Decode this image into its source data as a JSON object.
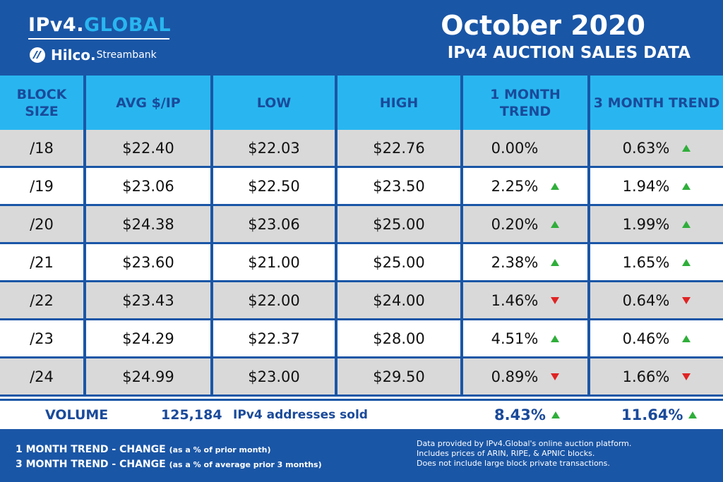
{
  "header": {
    "brand_main": "IPv4.",
    "brand_accent": "GLOBAL",
    "sub_brand_bold": "Hilco.",
    "sub_brand_rest": "Streambank",
    "title_main": "October 2020",
    "title_sub": "IPv4 AUCTION SALES DATA"
  },
  "columns": [
    "BLOCK SIZE",
    "AVG $/IP",
    "LOW",
    "HIGH",
    "1 MONTH TREND",
    "3 MONTH TREND"
  ],
  "rows": [
    {
      "block": "/18",
      "avg": "$22.40",
      "low": "$22.03",
      "high": "$22.76",
      "t1": "0.00%",
      "t1_dir": "none",
      "t3": "0.63%",
      "t3_dir": "up"
    },
    {
      "block": "/19",
      "avg": "$23.06",
      "low": "$22.50",
      "high": "$23.50",
      "t1": "2.25%",
      "t1_dir": "up",
      "t3": "1.94%",
      "t3_dir": "up"
    },
    {
      "block": "/20",
      "avg": "$24.38",
      "low": "$23.06",
      "high": "$25.00",
      "t1": "0.20%",
      "t1_dir": "up",
      "t3": "1.99%",
      "t3_dir": "up"
    },
    {
      "block": "/21",
      "avg": "$23.60",
      "low": "$21.00",
      "high": "$25.00",
      "t1": "2.38%",
      "t1_dir": "up",
      "t3": "1.65%",
      "t3_dir": "up"
    },
    {
      "block": "/22",
      "avg": "$23.43",
      "low": "$22.00",
      "high": "$24.00",
      "t1": "1.46%",
      "t1_dir": "down",
      "t3": "0.64%",
      "t3_dir": "down"
    },
    {
      "block": "/23",
      "avg": "$24.29",
      "low": "$22.37",
      "high": "$28.00",
      "t1": "4.51%",
      "t1_dir": "up",
      "t3": "0.46%",
      "t3_dir": "up"
    },
    {
      "block": "/24",
      "avg": "$24.99",
      "low": "$23.00",
      "high": "$29.50",
      "t1": "0.89%",
      "t1_dir": "down",
      "t3": "1.66%",
      "t3_dir": "down"
    }
  ],
  "volume": {
    "label": "VOLUME",
    "count": "125,184",
    "text": "IPv4 addresses sold",
    "t1": "8.43%",
    "t1_dir": "up",
    "t3": "11.64%",
    "t3_dir": "up"
  },
  "footer": {
    "legend1_bold": "1 MONTH TREND - CHANGE",
    "legend1_small": "(as a % of prior month)",
    "legend2_bold": "3 MONTH TREND - CHANGE",
    "legend2_small": "(as a % of average prior 3 months)",
    "note1": "Data provided by IPv4.Global's online auction platform.",
    "note2": "Includes prices of ARIN, RIPE, & APNIC blocks.",
    "note3": "Does not include large block private transactions."
  },
  "colors": {
    "primary": "#1a56a6",
    "header_cell": "#29b6f0",
    "up_arrow": "#2fae3a",
    "down_arrow": "#e02323"
  }
}
